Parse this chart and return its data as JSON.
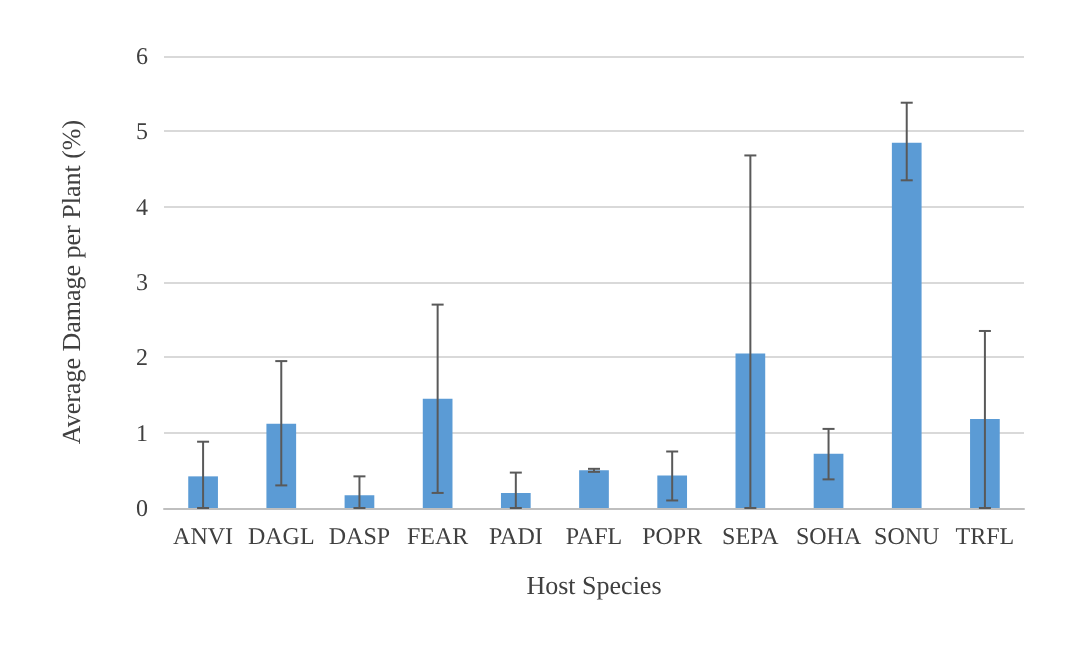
{
  "chart_data": {
    "type": "bar",
    "xlabel": "Host Species",
    "ylabel": "Average Damage per Plant (%)",
    "categories": [
      "ANVI",
      "DAGL",
      "DASP",
      "FEAR",
      "PADI",
      "PAFL",
      "POPR",
      "SEPA",
      "SOHA",
      "SONU",
      "TRFL"
    ],
    "values": [
      0.42,
      1.12,
      0.17,
      1.45,
      0.2,
      0.5,
      0.43,
      2.05,
      0.72,
      4.85,
      1.18
    ],
    "errors": [
      [
        0,
        0.88
      ],
      [
        0.3,
        1.95
      ],
      [
        0,
        0.42
      ],
      [
        0.2,
        2.7
      ],
      [
        0,
        0.47
      ],
      [
        0.48,
        0.52
      ],
      [
        0.1,
        0.75
      ],
      [
        0,
        4.68
      ],
      [
        0.38,
        1.05
      ],
      [
        4.35,
        5.38
      ],
      [
        0,
        2.35
      ]
    ],
    "color": "#5b9bd5",
    "ylim": [
      0,
      6
    ],
    "yticks": [
      0,
      1,
      2,
      3,
      4,
      5,
      6
    ],
    "grid": "y"
  }
}
